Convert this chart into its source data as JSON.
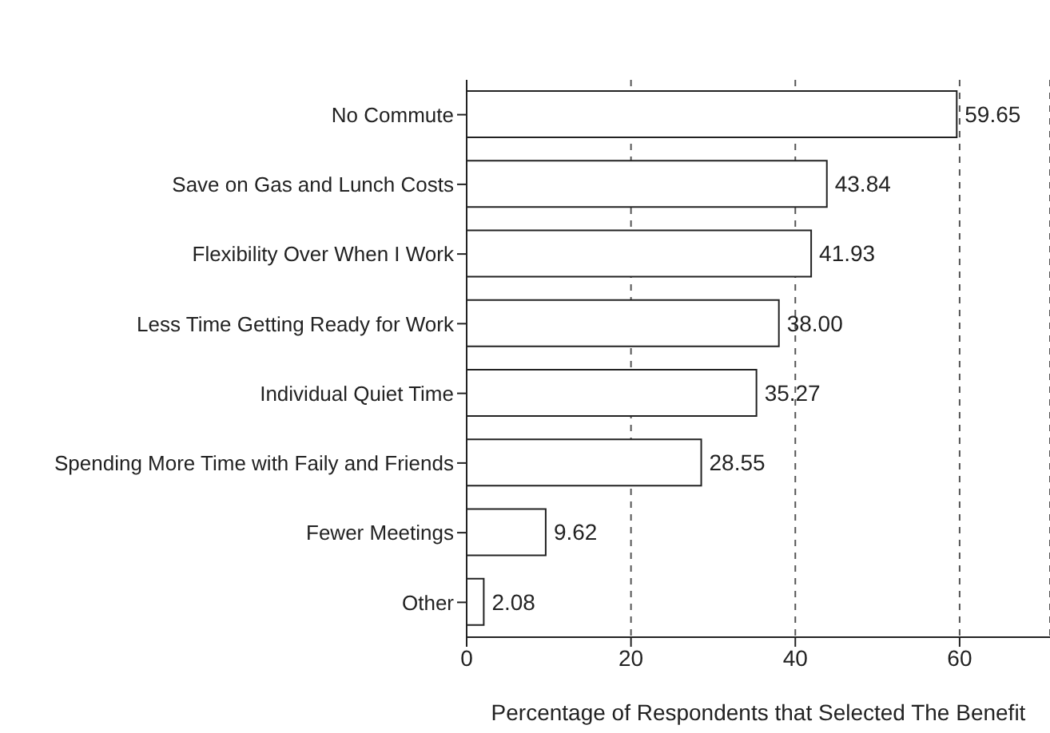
{
  "chart_data": {
    "type": "bar",
    "orientation": "horizontal",
    "xlabel": "Percentage of Respondents that Selected The Benefit",
    "categories": [
      "No Commute",
      "Save on Gas and Lunch Costs",
      "Flexibility Over When I Work",
      "Less Time Getting Ready for Work",
      "Individual Quiet Time",
      "Spending More Time with Faily and Friends",
      "Fewer Meetings",
      "Other"
    ],
    "values": [
      59.65,
      43.84,
      41.93,
      38.0,
      35.27,
      28.55,
      9.62,
      2.08
    ],
    "value_labels": [
      "59.65",
      "43.84",
      "41.93",
      "38.00",
      "35.27",
      "28.55",
      "9.62",
      "2.08"
    ],
    "color": "#ffffff",
    "xlim": [
      0,
      71
    ],
    "xticks": [
      0,
      20,
      40,
      60
    ],
    "grid": "x"
  }
}
